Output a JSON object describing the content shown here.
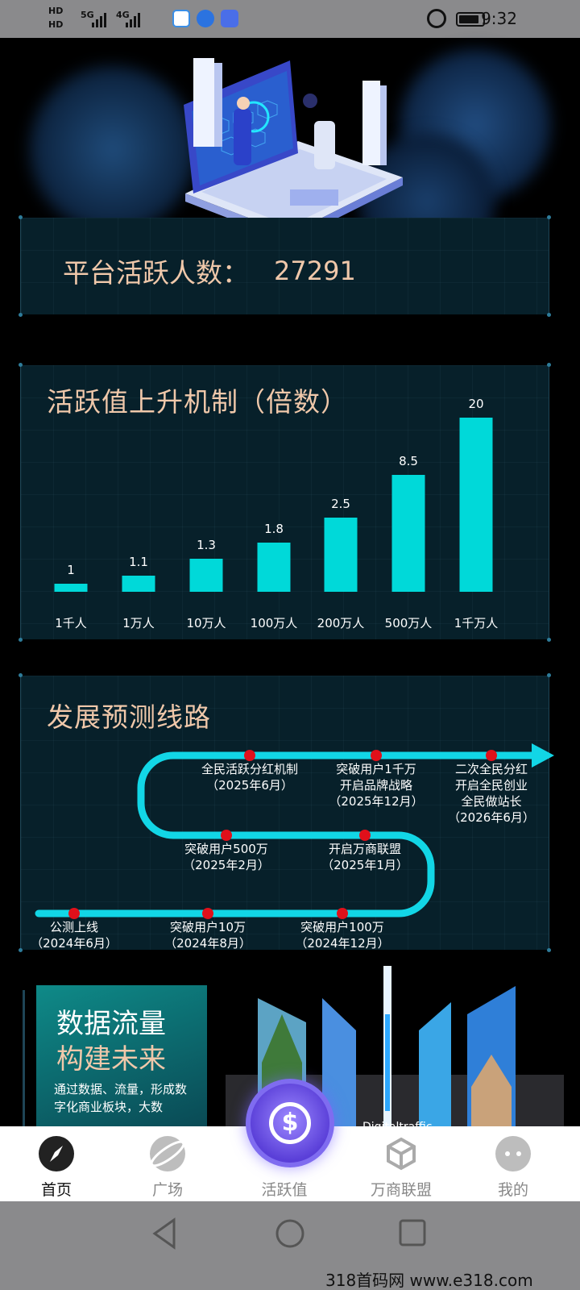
{
  "status_bar": {
    "time": "9:32",
    "network_1": "HD",
    "network_2": "HD",
    "sig_1": "5G",
    "sig_2": "4G"
  },
  "stats": {
    "label": "平台活跃人数：",
    "value": "27291"
  },
  "chart_section": {
    "title": "活跃值上升机制（倍数）"
  },
  "chart_data": {
    "type": "bar",
    "title": "活跃值上升机制（倍数）",
    "categories": [
      "1千人",
      "1万人",
      "10万人",
      "100万人",
      "200万人",
      "500万人",
      "1千万人"
    ],
    "values": [
      1,
      1.1,
      1.3,
      1.8,
      2.5,
      8.5,
      20
    ],
    "value_labels": [
      "1",
      "1.1",
      "1.3",
      "1.8",
      "2.5",
      "8.5",
      "20"
    ],
    "bar_color": "#00d9d9"
  },
  "roadmap": {
    "title": "发展预测线路",
    "milestones": [
      {
        "line1": "公测上线",
        "line2": "（2024年6月）"
      },
      {
        "line1": "突破用户10万",
        "line2": "（2024年8月）"
      },
      {
        "line1": "突破用户100万",
        "line2": "（2024年12月）"
      },
      {
        "line1": "开启万商联盟",
        "line2": "（2025年1月）"
      },
      {
        "line1": "突破用户500万",
        "line2": "（2025年2月）"
      },
      {
        "line1": "全民活跃分红机制",
        "line2": "（2025年6月）"
      },
      {
        "line1": "突破用户1千万",
        "line2": "开启品牌战略",
        "line3": "（2025年12月）"
      },
      {
        "line1": "二次全民分红",
        "line2": "开启全民创业",
        "line3": "全民做站长",
        "line4": "（2026年6月）"
      }
    ],
    "line_color": "#12d6e6",
    "dot_color": "#e0101a"
  },
  "promo": {
    "heading1": "数据流量",
    "heading2": "构建未来",
    "body": "通过数据、流量，形成数字化商业板块，大数",
    "tag": "Digitaltraffic"
  },
  "tabbar": {
    "tabs": [
      {
        "label": "首页",
        "icon": "compass-icon",
        "active": true
      },
      {
        "label": "广场",
        "icon": "planet-icon"
      },
      {
        "label": "活跃值",
        "icon": "coin-icon"
      },
      {
        "label": "万商联盟",
        "icon": "cube-icon"
      },
      {
        "label": "我的",
        "icon": "face-icon"
      }
    ]
  },
  "watermark": "318首码网  www.e318.com"
}
